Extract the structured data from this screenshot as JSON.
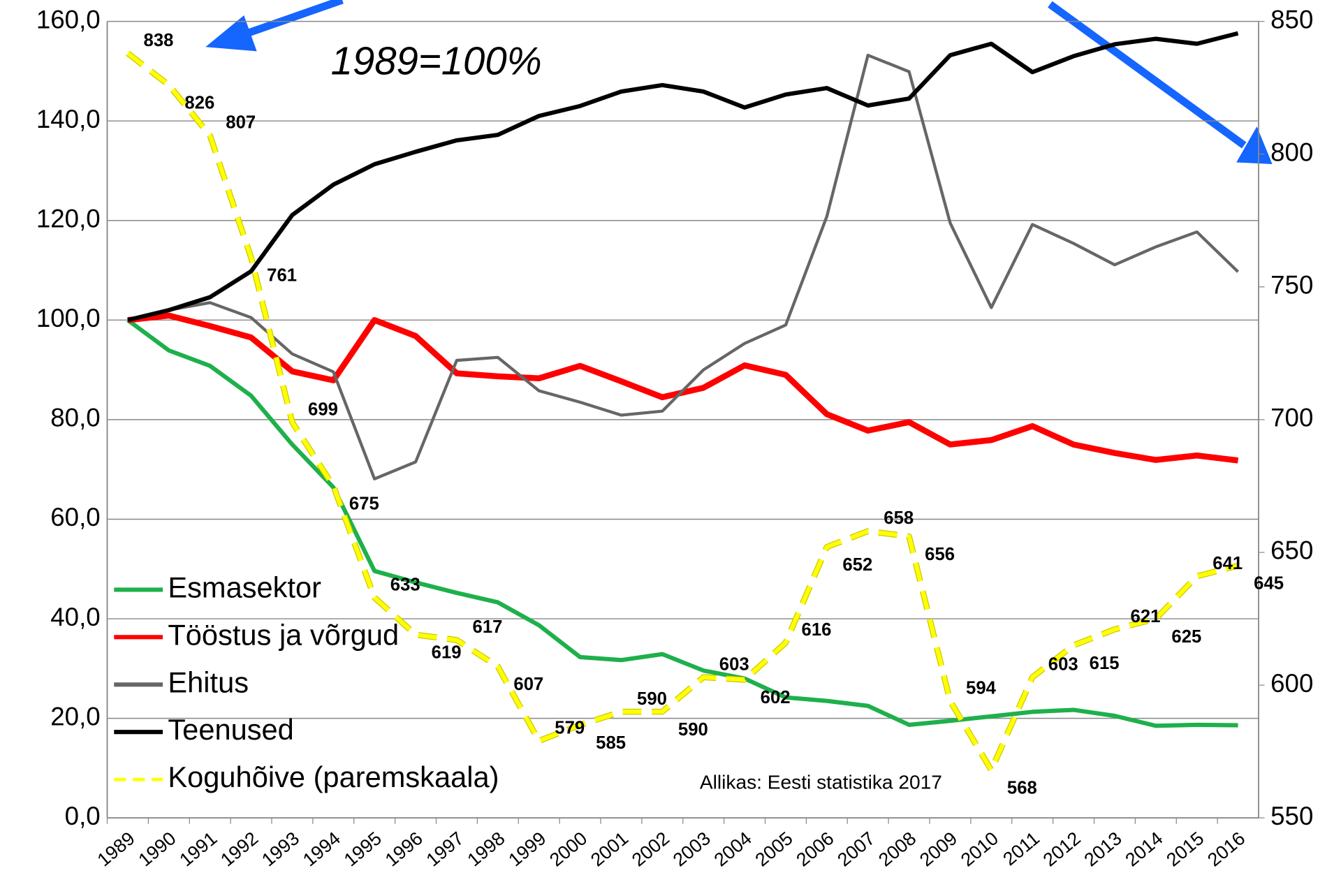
{
  "chart_data": {
    "type": "line",
    "annotation": "1989=100%",
    "source": "Allikas: Eesti statistika 2017",
    "categories": [
      "1989",
      "1990",
      "1991",
      "1992",
      "1993",
      "1994",
      "1995",
      "1996",
      "1997",
      "1998",
      "1999",
      "2000",
      "2001",
      "2002",
      "2003",
      "2004",
      "2005",
      "2006",
      "2007",
      "2008",
      "2009",
      "2010",
      "2011",
      "2012",
      "2013",
      "2014",
      "2015",
      "2016"
    ],
    "ylim": [
      0,
      160
    ],
    "yticks": [
      {
        "value": 0,
        "label": "0,0"
      },
      {
        "value": 20,
        "label": "20,0"
      },
      {
        "value": 40,
        "label": "40,0"
      },
      {
        "value": 60,
        "label": "60,0"
      },
      {
        "value": 80,
        "label": "80,0"
      },
      {
        "value": 100,
        "label": "100,0"
      },
      {
        "value": 120,
        "label": "120,0"
      },
      {
        "value": 140,
        "label": "140,0"
      },
      {
        "value": 160,
        "label": "160,0"
      }
    ],
    "y2lim": [
      550,
      850
    ],
    "y2ticks": [
      550,
      600,
      650,
      700,
      750,
      800,
      850
    ],
    "grid": true,
    "legend": "left",
    "series": [
      {
        "name": "Esmasektor",
        "color": "#1eb04b",
        "width": 5,
        "values": [
          100,
          93.9,
          90.8,
          84.8,
          75,
          66.4,
          49.6,
          47.3,
          45.2,
          43.3,
          38.7,
          32.3,
          31.7,
          32.9,
          29.6,
          28.0,
          24.2,
          23.5,
          22.5,
          18.7,
          19.5,
          20.4,
          21.3,
          21.7,
          20.5,
          18.5,
          18.7,
          18.6
        ]
      },
      {
        "name": "Tööstus ja võrgud",
        "color": "#ff0000",
        "width": 7,
        "values": [
          100,
          100.9,
          98.8,
          96.5,
          89.7,
          87.9,
          100.0,
          96.8,
          89.3,
          88.7,
          88.3,
          90.8,
          87.7,
          84.5,
          86.4,
          90.9,
          89.0,
          81.1,
          77.8,
          79.5,
          75.0,
          75.9,
          78.7,
          75.0,
          73.3,
          71.9,
          72.8,
          71.8
        ]
      },
      {
        "name": "Ehitus",
        "color": "#666666",
        "width": 3.5,
        "values": [
          100,
          102,
          103.5,
          100.5,
          93.2,
          89.6,
          68.1,
          71.5,
          91.9,
          92.5,
          85.8,
          83.5,
          80.9,
          81.7,
          90.0,
          95.3,
          99.0,
          120.8,
          153.2,
          149.9,
          119.5,
          102.5,
          119.2,
          115.4,
          111.1,
          114.7,
          117.7,
          109.7
        ]
      },
      {
        "name": "Teenused",
        "color": "#000000",
        "width": 5,
        "values": [
          100,
          102,
          104.6,
          109.8,
          121.1,
          127.2,
          131.3,
          133.8,
          136.1,
          137.2,
          141.0,
          143.0,
          145.9,
          147.2,
          145.9,
          142.7,
          145.3,
          146.6,
          143.1,
          144.5,
          153.2,
          155.5,
          149.8,
          153.0,
          155.4,
          156.5,
          155.5,
          157.6
        ]
      },
      {
        "name": "Koguhõive (paremskaala)",
        "color": "#ffff00",
        "width": 5,
        "dashed": true,
        "axis": "y2",
        "values": [
          838,
          826,
          807,
          761,
          699,
          675,
          633,
          619,
          617,
          607,
          579,
          585,
          590,
          590,
          603,
          602,
          616,
          652,
          658,
          656,
          594,
          568,
          603,
          615,
          621,
          625,
          641,
          645
        ]
      }
    ]
  }
}
